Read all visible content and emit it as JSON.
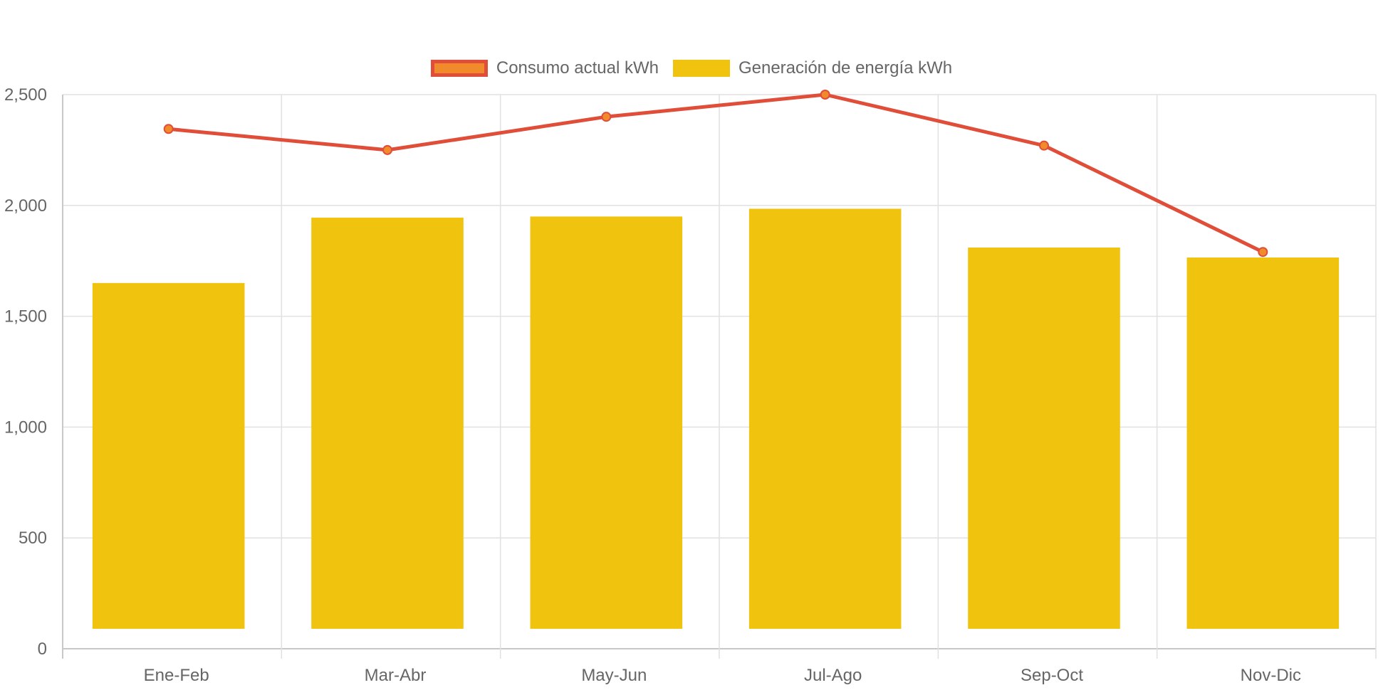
{
  "chart_data": {
    "type": "bar",
    "categories": [
      "Ene-Feb",
      "Mar-Abr",
      "May-Jun",
      "Jul-Ago",
      "Sep-Oct",
      "Nov-Dic"
    ],
    "series": [
      {
        "name": "Consumo actual kWh",
        "type": "line",
        "values": [
          2345,
          2250,
          2400,
          2500,
          2270,
          1790
        ],
        "color": "#e04e39",
        "point_color": "#f08a2a"
      },
      {
        "name": "Generación de energía kWh",
        "type": "bar",
        "values": [
          1560,
          1855,
          1860,
          1895,
          1720,
          1675
        ],
        "base": 90,
        "color": "#f0c30f"
      }
    ],
    "ylim": [
      0,
      2500
    ],
    "yticks": [
      0,
      500,
      1000,
      1500,
      2000,
      2500
    ],
    "ytick_labels": [
      "0",
      "500",
      "1,000",
      "1,500",
      "2,000",
      "2,500"
    ],
    "grid": true,
    "legend": "top-center",
    "title": "",
    "xlabel": "",
    "ylabel": ""
  }
}
